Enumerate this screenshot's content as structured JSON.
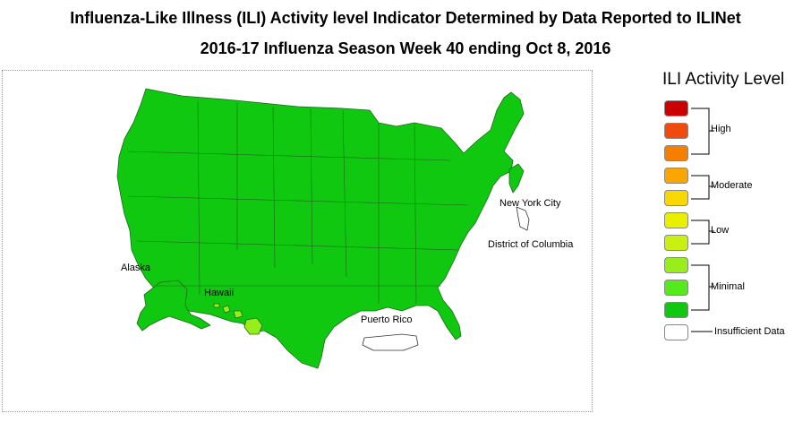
{
  "title_line1": "Influenza-Like Illness (ILI) Activity level Indicator Determined by Data Reported to ILINet",
  "title_line2": "2016-17 Influenza Season Week 40 ending Oct 8, 2016",
  "map": {
    "labels": {
      "alaska": "Alaska",
      "hawaii": "Hawaii",
      "puerto_rico": "Puerto Rico",
      "new_york_city": "New York City",
      "district_of_columbia": "District of Columbia"
    },
    "region_levels": {
      "contiguous_us": "Minimal (level 1)",
      "alaska": "Minimal (level 1)",
      "hawaii": "Minimal (level 3)",
      "puerto_rico": "Insufficient Data",
      "new_york_city": "Insufficient Data",
      "district_of_columbia": "Insufficient Data"
    }
  },
  "legend": {
    "title": "ILI Activity Level",
    "groups": {
      "high": "High",
      "moderate": "Moderate",
      "low": "Low",
      "minimal": "Minimal",
      "insufficient": "Insufficient Data"
    },
    "levels": [
      {
        "group": "High",
        "color": "#cc0000"
      },
      {
        "group": "High",
        "color": "#f04a0c"
      },
      {
        "group": "High",
        "color": "#f77f00"
      },
      {
        "group": "Moderate",
        "color": "#f9a600"
      },
      {
        "group": "Moderate",
        "color": "#f8d800"
      },
      {
        "group": "Low",
        "color": "#e8f000"
      },
      {
        "group": "Low",
        "color": "#c8f010"
      },
      {
        "group": "Minimal",
        "color": "#98ee1a"
      },
      {
        "group": "Minimal",
        "color": "#55ea1c"
      },
      {
        "group": "Minimal",
        "color": "#10c810"
      },
      {
        "group": "Insufficient Data",
        "color": "#ffffff"
      }
    ]
  }
}
